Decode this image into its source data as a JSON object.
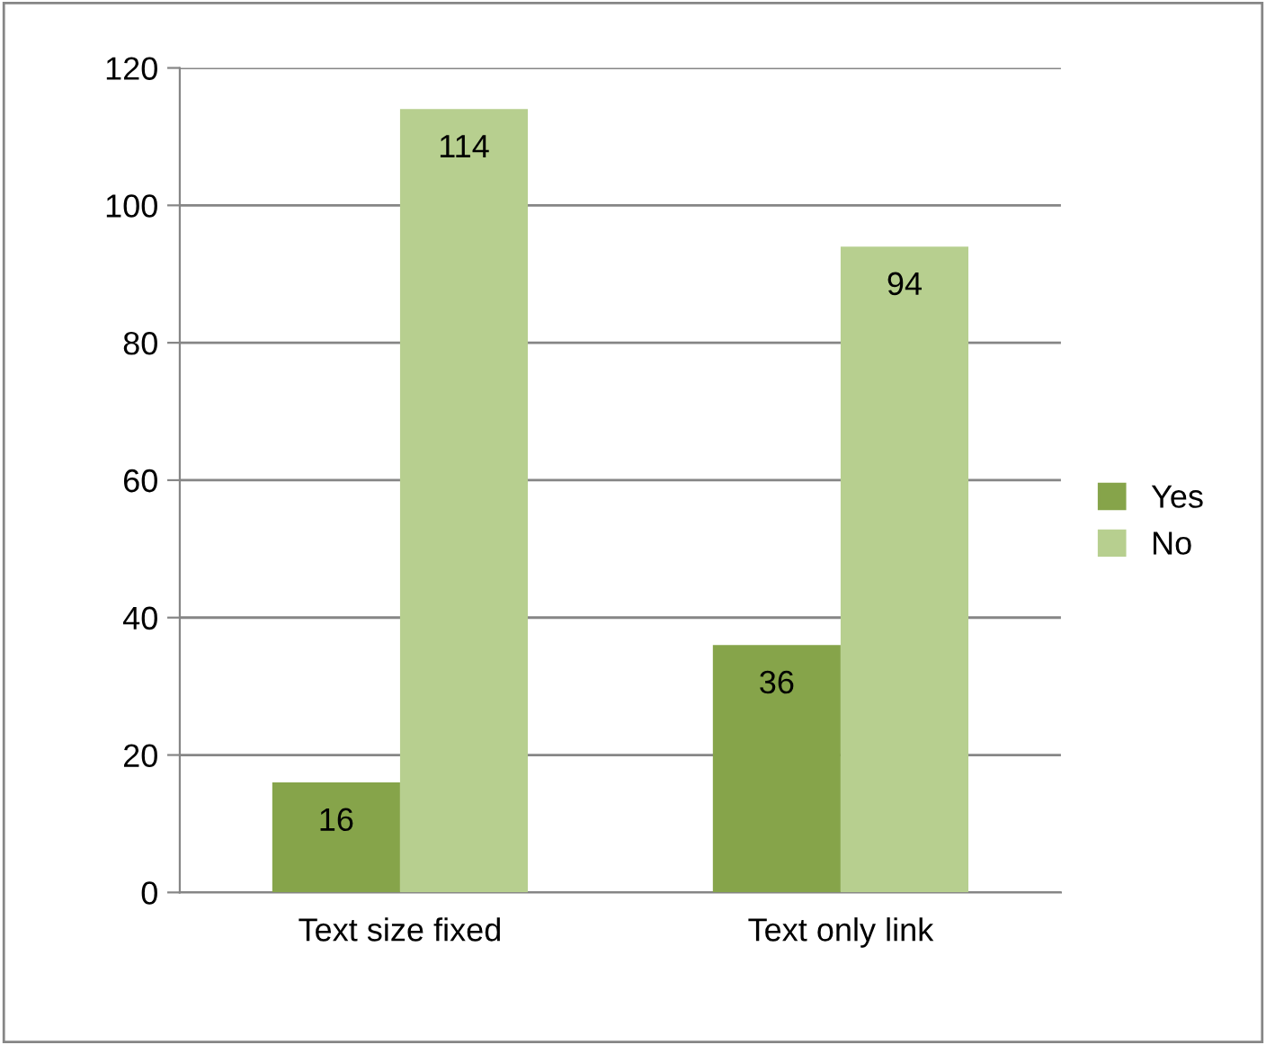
{
  "chart_data": {
    "type": "bar",
    "categories": [
      "Text size fixed",
      "Text only link"
    ],
    "series": [
      {
        "name": "Yes",
        "color": "#86a44a",
        "values": [
          16,
          36
        ]
      },
      {
        "name": "No",
        "color": "#b7cf8f",
        "values": [
          114,
          94
        ]
      }
    ],
    "ylim": [
      0,
      120
    ],
    "yticks": [
      0,
      20,
      40,
      60,
      80,
      100,
      120
    ],
    "grid": "y",
    "legend": "right",
    "data_labels": true
  }
}
